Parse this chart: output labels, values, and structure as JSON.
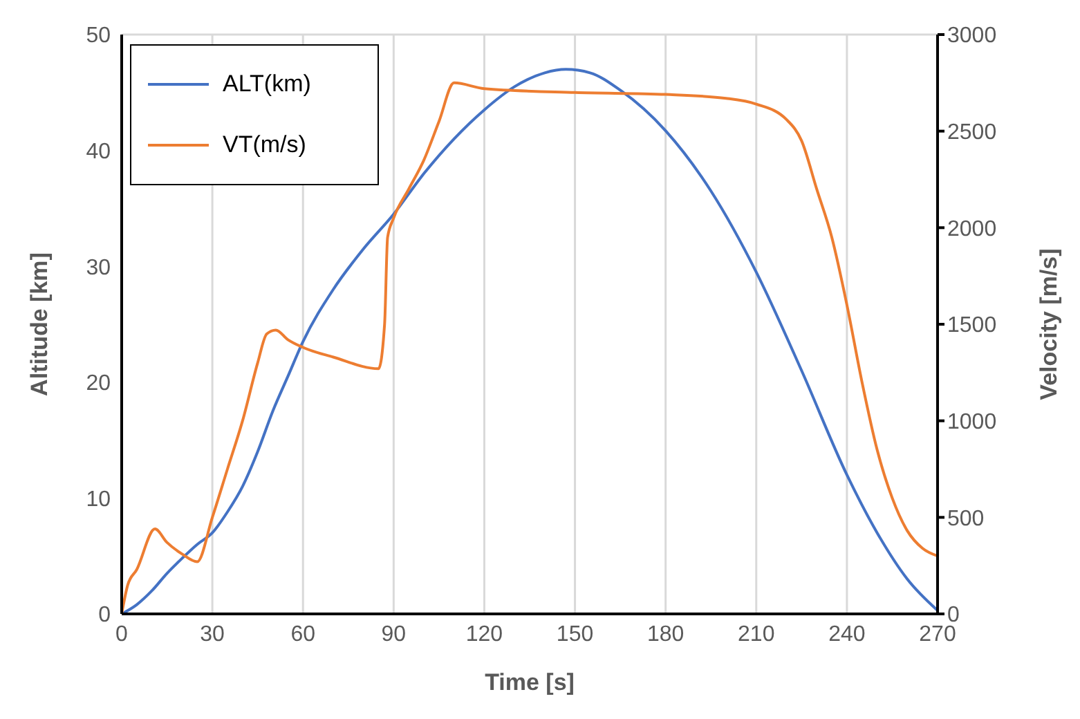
{
  "chart_data": {
    "type": "line",
    "xlabel": "Time [s]",
    "ylabel": "Altitude [km]",
    "y2label": "Velocity [m/s]",
    "xlim": [
      0,
      270
    ],
    "xticks": [
      0,
      30,
      60,
      90,
      120,
      150,
      180,
      210,
      240,
      270
    ],
    "ylim": [
      0,
      50
    ],
    "yticks": [
      0,
      10,
      20,
      30,
      40,
      50
    ],
    "y2lim": [
      0,
      3000
    ],
    "y2ticks": [
      0,
      500,
      1000,
      1500,
      2000,
      2500,
      3000
    ],
    "grid": true,
    "legend": "top left",
    "marker": "none",
    "line_style": "solid",
    "series": [
      {
        "name": "ALT(km)",
        "color": "#4472c4",
        "x": [
          0,
          5,
          10,
          15,
          20,
          25,
          30,
          35,
          40,
          45,
          50,
          55,
          60,
          70,
          80,
          90,
          100,
          110,
          120,
          130,
          140,
          147,
          155,
          165,
          180,
          195,
          210,
          225,
          240,
          250,
          260,
          270
        ],
        "values": [
          0,
          0.8,
          2,
          3.5,
          4.8,
          6,
          7,
          8.8,
          11,
          14,
          17.5,
          20.5,
          23.5,
          28,
          31.5,
          34.5,
          38,
          41,
          43.5,
          45.5,
          46.7,
          47,
          46.7,
          45.2,
          41.7,
          36.5,
          29.5,
          21,
          12,
          7,
          3,
          0.3
        ]
      },
      {
        "name": "VT(m/s)",
        "color": "#ed7d31",
        "axis": "y2",
        "x": [
          0,
          2,
          5,
          11,
          15,
          20,
          25,
          30,
          35,
          40,
          45,
          48,
          51,
          55,
          60,
          70,
          85,
          87,
          88,
          90,
          95,
          100,
          105,
          110,
          120,
          150,
          180,
          200,
          210,
          220,
          225,
          230,
          235,
          240,
          245,
          250,
          255,
          260,
          265,
          270
        ],
        "values": [
          0,
          150,
          230,
          440,
          370,
          310,
          270,
          500,
          750,
          1000,
          1300,
          1450,
          1470,
          1420,
          1380,
          1330,
          1270,
          1500,
          1950,
          2050,
          2200,
          2350,
          2550,
          2750,
          2720,
          2700,
          2690,
          2670,
          2640,
          2560,
          2450,
          2200,
          1950,
          1600,
          1200,
          850,
          600,
          430,
          340,
          300
        ]
      }
    ]
  }
}
